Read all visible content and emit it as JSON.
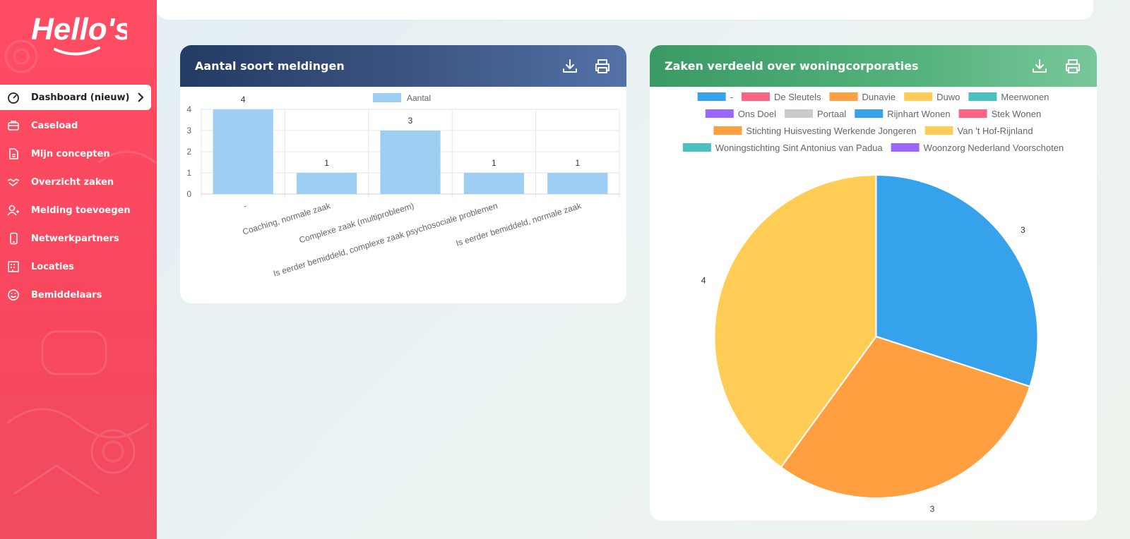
{
  "sidebar": {
    "logo_text": "Hello's",
    "items": [
      {
        "label": "Dashboard (nieuw)",
        "icon": "gauge-icon",
        "active": true
      },
      {
        "label": "Caseload",
        "icon": "briefcase-icon"
      },
      {
        "label": "Mijn concepten",
        "icon": "document-icon"
      },
      {
        "label": "Overzicht zaken",
        "icon": "handshake-icon"
      },
      {
        "label": "Melding toevoegen",
        "icon": "user-add-icon"
      },
      {
        "label": "Netwerkpartners",
        "icon": "phone-icon"
      },
      {
        "label": "Locaties",
        "icon": "building-icon"
      },
      {
        "label": "Bemiddelaars",
        "icon": "smiley-icon"
      }
    ]
  },
  "card_bar": {
    "title": "Aantal soort meldingen",
    "actions": [
      "download-icon",
      "print-icon"
    ]
  },
  "card_pie": {
    "title": "Zaken verdeeld over woningcorporaties",
    "actions": [
      "download-icon",
      "print-icon"
    ]
  },
  "chart_data": [
    {
      "type": "bar",
      "title": "",
      "legend": [
        "Aantal"
      ],
      "legend_position": "top",
      "categories": [
        "-",
        "Coaching, normale zaak",
        "Complexe zaak (multiprobleem)",
        "Is eerder bemiddeld, complexe zaak psychosociale problemen",
        "Is eerder bemiddeld, normale zaak"
      ],
      "series": [
        {
          "name": "Aantal",
          "values": [
            4,
            1,
            3,
            1,
            1
          ]
        }
      ],
      "ylim": [
        0,
        4
      ],
      "yticks": [
        0,
        1,
        2,
        3,
        4
      ],
      "grid": true,
      "color": "#9ecff3"
    },
    {
      "type": "pie",
      "title": "",
      "legend_position": "top",
      "legend": [
        {
          "label": "-",
          "color": "#36a2eb"
        },
        {
          "label": "De Sleutels",
          "color": "#ff6384"
        },
        {
          "label": "Dunavie",
          "color": "#ff9f40"
        },
        {
          "label": "Duwo",
          "color": "#ffcd56"
        },
        {
          "label": "Meerwonen",
          "color": "#4bc0c0"
        },
        {
          "label": "Ons Doel",
          "color": "#9966ff"
        },
        {
          "label": "Portaal",
          "color": "#c9cbcf"
        },
        {
          "label": "Rijnhart Wonen",
          "color": "#36a2eb"
        },
        {
          "label": "Stek Wonen",
          "color": "#ff6384"
        },
        {
          "label": "Stichting Huisvesting Werkende Jongeren",
          "color": "#ff9f40"
        },
        {
          "label": "Van 't Hof-Rijnland",
          "color": "#ffcd56"
        },
        {
          "label": "Woningstichting Sint Antonius van Padua",
          "color": "#4bc0c0"
        },
        {
          "label": "Woonzorg Nederland Voorschoten",
          "color": "#9966ff"
        }
      ],
      "slices": [
        {
          "value": 3,
          "color": "#36a2eb"
        },
        {
          "value": 3,
          "color": "#ff9f40"
        },
        {
          "value": 4,
          "color": "#ffcd56"
        }
      ]
    }
  ]
}
